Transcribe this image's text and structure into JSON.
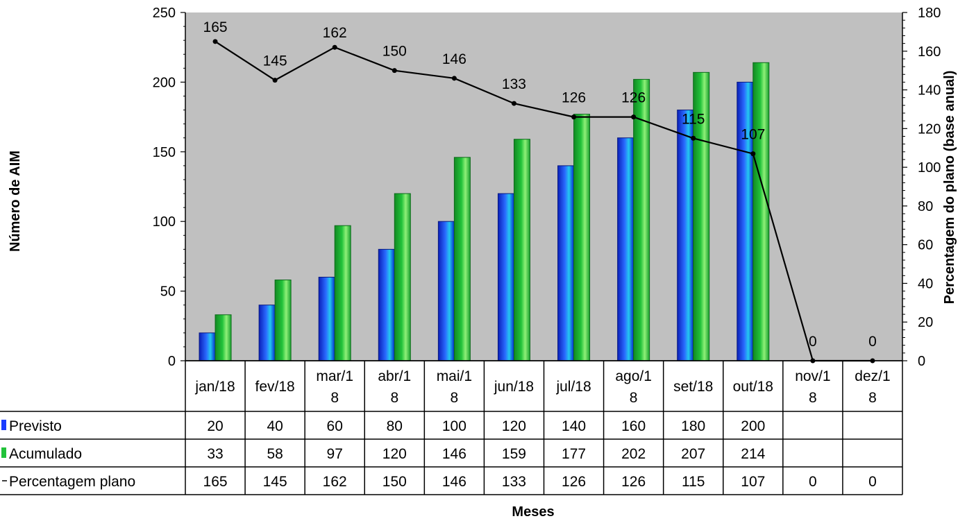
{
  "chart_data": {
    "type": "bar",
    "categories": [
      "jan/18",
      "fev/18",
      "mar/18",
      "abr/18",
      "mai/18",
      "jun/18",
      "jul/18",
      "ago/18",
      "set/18",
      "out/18",
      "nov/18",
      "dez/18"
    ],
    "category_display": [
      [
        "jan/18"
      ],
      [
        "fev/18"
      ],
      [
        "mar/1",
        "8"
      ],
      [
        "abr/1",
        "8"
      ],
      [
        "mai/1",
        "8"
      ],
      [
        "jun/18"
      ],
      [
        "jul/18"
      ],
      [
        "ago/1",
        "8"
      ],
      [
        "set/18"
      ],
      [
        "out/18"
      ],
      [
        "nov/1",
        "8"
      ],
      [
        "dez/1",
        "8"
      ]
    ],
    "series": [
      {
        "name": "Previsto",
        "kind": "bar",
        "axis": "left",
        "color": "#1a3cff",
        "values": [
          20,
          40,
          60,
          80,
          100,
          120,
          140,
          160,
          180,
          200,
          null,
          null
        ]
      },
      {
        "name": "Acumulado",
        "kind": "bar",
        "axis": "left",
        "color": "#22c23a",
        "values": [
          33,
          58,
          97,
          120,
          146,
          159,
          177,
          202,
          207,
          214,
          null,
          null
        ]
      },
      {
        "name": "Percentagem plano",
        "kind": "line",
        "axis": "right",
        "color": "#000000",
        "values": [
          165,
          145,
          162,
          150,
          146,
          133,
          126,
          126,
          115,
          107,
          0,
          0
        ]
      }
    ],
    "xlabel": "Meses",
    "ylabel": "Número de AIM",
    "y2label": "Percentagem do plano (base anual)",
    "ylim": [
      0,
      250
    ],
    "y2lim": [
      0,
      180
    ],
    "yticks": [
      0,
      50,
      100,
      150,
      200,
      250
    ],
    "y2ticks": [
      0,
      20,
      40,
      60,
      80,
      100,
      120,
      140,
      160,
      180
    ],
    "plot_background": "#c0c0c0",
    "grid": false,
    "legend": "data-table"
  }
}
